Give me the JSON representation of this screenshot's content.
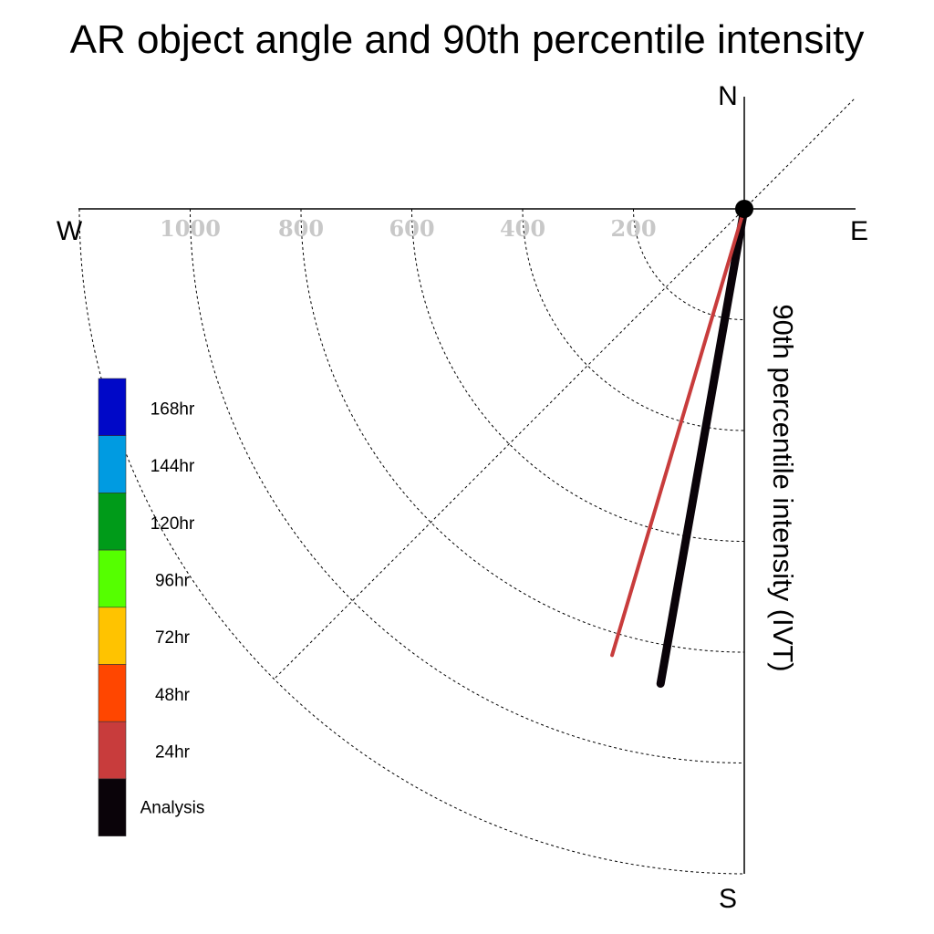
{
  "chart_data": {
    "type": "polar-vector",
    "title": "AR object angle and 90th percentile intensity",
    "axis_label": "90th percentile intensity (IVT)",
    "compass": {
      "north": "N",
      "south": "S",
      "east": "E",
      "west": "W"
    },
    "radial_ticks": [
      200,
      400,
      600,
      800,
      1000
    ],
    "radial_max": 1200,
    "series": [
      {
        "name": "Analysis",
        "angle_deg": 10,
        "intensity": 870,
        "color": "#0a0309"
      },
      {
        "name": "24hr",
        "angle_deg": 16.5,
        "intensity": 840,
        "color": "#c83c3c"
      }
    ],
    "legend": [
      {
        "label": "168hr",
        "color": "#0008c8"
      },
      {
        "label": "144hr",
        "color": "#009be1"
      },
      {
        "label": "120hr",
        "color": "#009b19"
      },
      {
        "label": "96hr",
        "color": "#55ff00"
      },
      {
        "label": "72hr",
        "color": "#ffc300"
      },
      {
        "label": "48hr",
        "color": "#ff4600"
      },
      {
        "label": "24hr",
        "color": "#c83c3c"
      },
      {
        "label": "Analysis",
        "color": "#0a0309"
      }
    ]
  }
}
